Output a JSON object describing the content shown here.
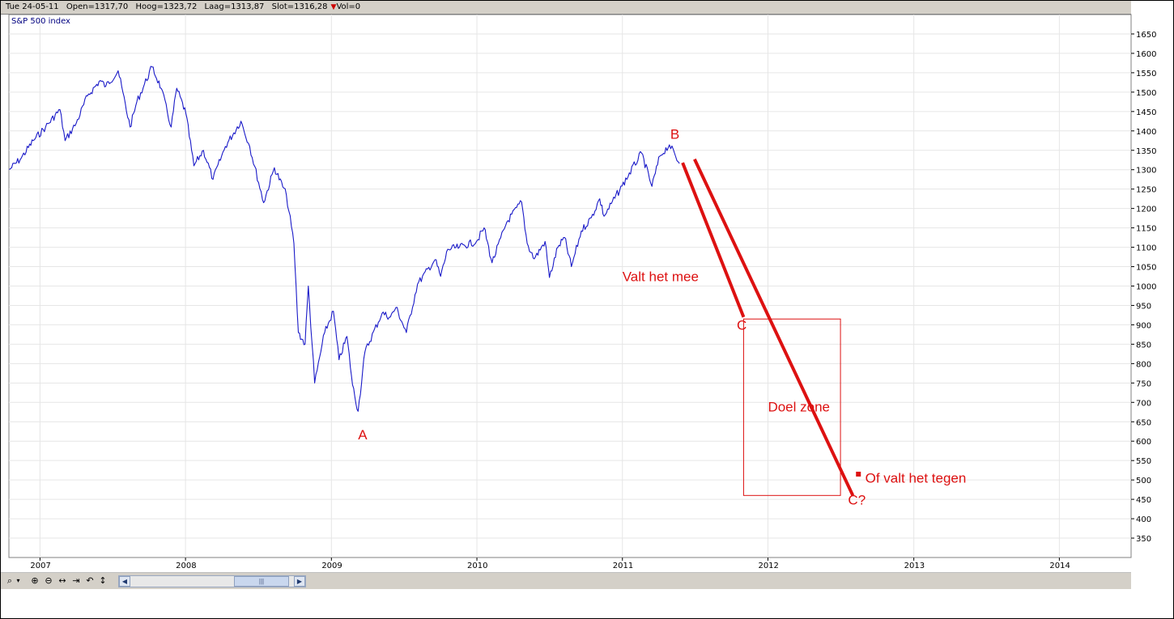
{
  "infobar": {
    "date": "Tue 24-05-11",
    "open": "Open=1317,70",
    "high": "Hoog=1323,72",
    "low": "Laag=1313,87",
    "close": "Slot=1316,28",
    "vol": "Vol=0",
    "vol_marker_color": "#cc0000"
  },
  "toolbar": {
    "icons": [
      "zoom-menu-icon",
      "zoom-in-icon",
      "zoom-out-icon",
      "pan-horizontal-icon",
      "go-to-end-icon",
      "undo-icon",
      "pan-vertical-icon"
    ]
  },
  "chart_data": {
    "type": "line",
    "title": "S&P 500 index",
    "series_color": "#1a1ac8",
    "annotation_color": "#dd1111",
    "x_axis": {
      "type": "date",
      "range": [
        "2006-10-15",
        "2014-06-30"
      ],
      "tick_labels": [
        "2007",
        "2008",
        "2009",
        "2010",
        "2011",
        "2012",
        "2013",
        "2014"
      ]
    },
    "y_axis": {
      "range": [
        300,
        1700
      ],
      "tick_labels": [
        350,
        400,
        450,
        500,
        550,
        600,
        650,
        700,
        750,
        800,
        850,
        900,
        950,
        1000,
        1050,
        1100,
        1150,
        1200,
        1250,
        1300,
        1350,
        1400,
        1450,
        1500,
        1550,
        1600,
        1650
      ],
      "position": "right"
    },
    "grid": true,
    "series": [
      {
        "points": [
          [
            "2006-10-16",
            1300
          ],
          [
            "2006-11-15",
            1330
          ],
          [
            "2006-12-15",
            1375
          ],
          [
            "2007-01-15",
            1410
          ],
          [
            "2007-02-20",
            1455
          ],
          [
            "2007-03-05",
            1375
          ],
          [
            "2007-04-02",
            1420
          ],
          [
            "2007-04-30",
            1490
          ],
          [
            "2007-06-01",
            1530
          ],
          [
            "2007-06-15",
            1515
          ],
          [
            "2007-07-16",
            1555
          ],
          [
            "2007-08-15",
            1410
          ],
          [
            "2007-09-01",
            1475
          ],
          [
            "2007-10-09",
            1565
          ],
          [
            "2007-11-01",
            1510
          ],
          [
            "2007-11-26",
            1410
          ],
          [
            "2007-12-10",
            1510
          ],
          [
            "2008-01-02",
            1445
          ],
          [
            "2008-01-22",
            1310
          ],
          [
            "2008-02-15",
            1350
          ],
          [
            "2008-03-10",
            1275
          ],
          [
            "2008-04-10",
            1360
          ],
          [
            "2008-05-19",
            1425
          ],
          [
            "2008-06-10",
            1360
          ],
          [
            "2008-07-15",
            1215
          ],
          [
            "2008-08-11",
            1305
          ],
          [
            "2008-09-10",
            1235
          ],
          [
            "2008-09-29",
            1110
          ],
          [
            "2008-10-10",
            880
          ],
          [
            "2008-10-27",
            850
          ],
          [
            "2008-11-04",
            1000
          ],
          [
            "2008-11-20",
            750
          ],
          [
            "2008-12-15",
            880
          ],
          [
            "2009-01-06",
            935
          ],
          [
            "2009-01-20",
            810
          ],
          [
            "2009-02-09",
            870
          ],
          [
            "2009-02-23",
            745
          ],
          [
            "2009-03-09",
            677
          ],
          [
            "2009-03-26",
            830
          ],
          [
            "2009-05-08",
            930
          ],
          [
            "2009-05-29",
            920
          ],
          [
            "2009-06-12",
            945
          ],
          [
            "2009-07-08",
            880
          ],
          [
            "2009-08-05",
            1005
          ],
          [
            "2009-09-18",
            1068
          ],
          [
            "2009-10-02",
            1025
          ],
          [
            "2009-10-20",
            1095
          ],
          [
            "2009-11-18",
            1100
          ],
          [
            "2009-12-31",
            1115
          ],
          [
            "2010-01-19",
            1150
          ],
          [
            "2010-02-08",
            1060
          ],
          [
            "2010-03-17",
            1165
          ],
          [
            "2010-04-23",
            1217
          ],
          [
            "2010-05-07",
            1110
          ],
          [
            "2010-05-25",
            1070
          ],
          [
            "2010-06-21",
            1115
          ],
          [
            "2010-07-02",
            1022
          ],
          [
            "2010-07-23",
            1100
          ],
          [
            "2010-08-09",
            1125
          ],
          [
            "2010-08-26",
            1050
          ],
          [
            "2010-09-20",
            1142
          ],
          [
            "2010-10-15",
            1176
          ],
          [
            "2010-11-05",
            1225
          ],
          [
            "2010-11-16",
            1180
          ],
          [
            "2010-12-31",
            1258
          ],
          [
            "2011-02-18",
            1343
          ],
          [
            "2011-03-16",
            1257
          ],
          [
            "2011-04-05",
            1335
          ],
          [
            "2011-04-29",
            1364
          ],
          [
            "2011-05-24",
            1316
          ]
        ]
      }
    ],
    "annotations": [
      {
        "label": "A",
        "x": "2009-03-09",
        "y": 605
      },
      {
        "label": "B",
        "x": "2011-05-01",
        "y": 1380
      },
      {
        "label": "C",
        "x": "2011-10-15",
        "y": 887
      },
      {
        "label": "C?",
        "x": "2012-07-20",
        "y": 437
      },
      {
        "label": "Valt het mee",
        "x": "2011-01-01",
        "y": 1012
      },
      {
        "label": "Doel zone",
        "x": "2012-01-01",
        "y": 677
      },
      {
        "label": "Of valt het tegen",
        "x": "2012-09-01",
        "y": 493
      }
    ],
    "target_zone": {
      "x": [
        "2011-11-01",
        "2012-07-01"
      ],
      "y": [
        460,
        915
      ]
    },
    "projection_lines": [
      {
        "from": [
          "2011-06-01",
          1318
        ],
        "to": [
          "2011-11-01",
          920
        ]
      },
      {
        "from": [
          "2011-07-01",
          1327
        ],
        "to": [
          "2012-08-01",
          460
        ]
      }
    ],
    "marker_point": {
      "x": "2012-08-15",
      "y": 515
    }
  }
}
